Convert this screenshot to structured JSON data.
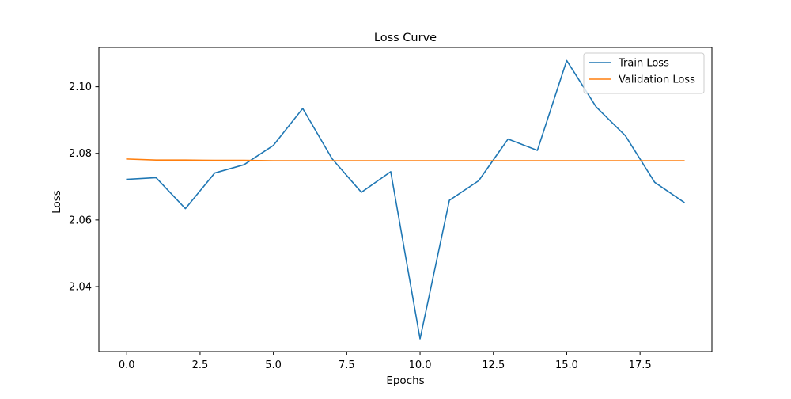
{
  "chart_data": {
    "type": "line",
    "title": "Loss Curve",
    "xlabel": "Epochs",
    "ylabel": "Loss",
    "xlim": [
      -0.95,
      19.95
    ],
    "ylim": [
      2.0205,
      2.1118
    ],
    "xticks": [
      0.0,
      2.5,
      5.0,
      7.5,
      10.0,
      12.5,
      15.0,
      17.5
    ],
    "xtick_labels": [
      "0.0",
      "2.5",
      "5.0",
      "7.5",
      "10.0",
      "12.5",
      "15.0",
      "17.5"
    ],
    "yticks": [
      2.04,
      2.06,
      2.08,
      2.1
    ],
    "ytick_labels": [
      "2.04",
      "2.06",
      "2.08",
      "2.10"
    ],
    "grid": false,
    "legend_position": "upper right",
    "x": [
      0,
      1,
      2,
      3,
      4,
      5,
      6,
      7,
      8,
      9,
      10,
      11,
      12,
      13,
      14,
      15,
      16,
      17,
      18,
      19
    ],
    "series": [
      {
        "name": "Train Loss",
        "color": "#1f77b4",
        "values": [
          2.0722,
          2.0727,
          2.0634,
          2.0741,
          2.0766,
          2.0824,
          2.0935,
          2.0784,
          2.0683,
          2.0745,
          2.0243,
          2.0659,
          2.0718,
          2.0843,
          2.0809,
          2.1079,
          2.094,
          2.0853,
          2.0713,
          2.0653
        ]
      },
      {
        "name": "Validation Loss",
        "color": "#ff7f0e",
        "values": [
          2.0783,
          2.078,
          2.078,
          2.0779,
          2.0779,
          2.0778,
          2.0778,
          2.0778,
          2.0778,
          2.0778,
          2.0778,
          2.0778,
          2.0778,
          2.0778,
          2.0778,
          2.0778,
          2.0778,
          2.0778,
          2.0778,
          2.0778
        ]
      }
    ]
  }
}
